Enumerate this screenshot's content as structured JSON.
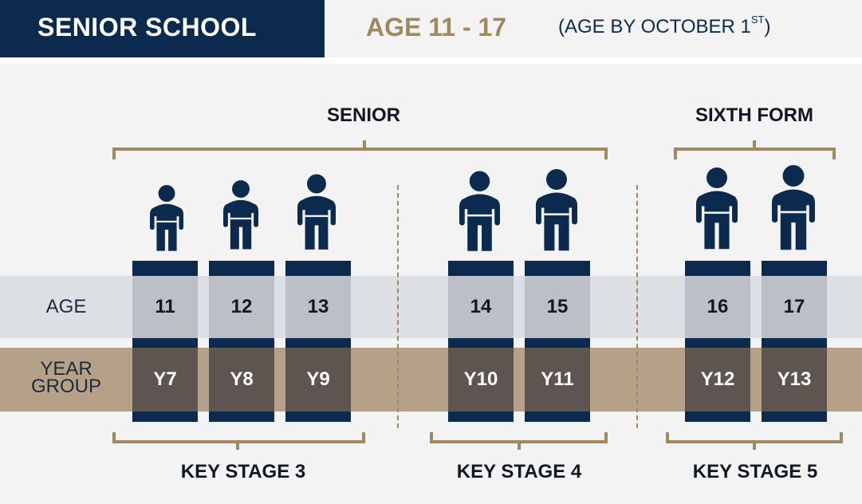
{
  "header": {
    "title": "SENIOR SCHOOL",
    "age_range": "AGE 11 - 17",
    "note_prefix": "(AGE BY OCTOBER 1",
    "note_sup": "ST",
    "note_suffix": ")"
  },
  "groups": {
    "senior": "SENIOR",
    "sixth_form": "SIXTH FORM"
  },
  "row_labels": {
    "age": "AGE",
    "year_line1": "YEAR",
    "year_line2": "GROUP"
  },
  "columns": [
    {
      "age": "11",
      "year": "Y7"
    },
    {
      "age": "12",
      "year": "Y8"
    },
    {
      "age": "13",
      "year": "Y9"
    },
    {
      "age": "14",
      "year": "Y10"
    },
    {
      "age": "15",
      "year": "Y11"
    },
    {
      "age": "16",
      "year": "Y12"
    },
    {
      "age": "17",
      "year": "Y13"
    }
  ],
  "key_stages": [
    "KEY STAGE 3",
    "KEY STAGE 4",
    "KEY STAGE 5"
  ],
  "colors": {
    "navy": "#0c2a4d",
    "gold": "#a08860",
    "age_band": "#dcdfe3",
    "year_band": "#b5a187",
    "age_cell": "#bcbfc6",
    "year_cell": "#5e5551"
  },
  "icons": {
    "person": "person-icon"
  }
}
